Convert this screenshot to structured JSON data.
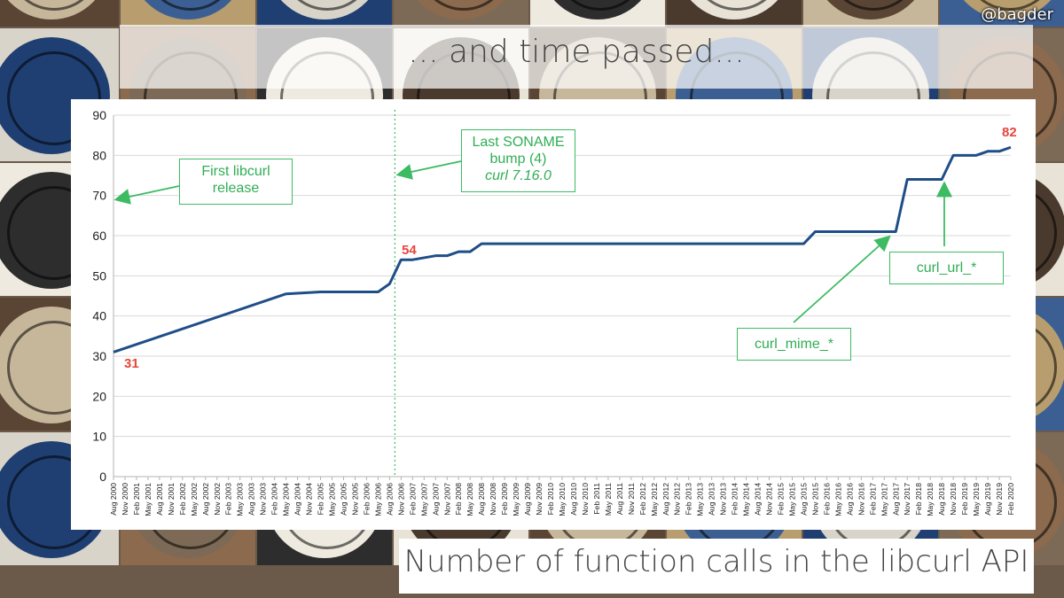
{
  "slide": {
    "handle": "@bagder",
    "title": "... and time passed...",
    "caption": "Number of function calls in the libcurl API"
  },
  "background": {
    "description_icon": "clock-faces-collage",
    "tile_colors": [
      "#c7b79a",
      "#3c5f93",
      "#d9d4c9",
      "#8b6a4e",
      "#2d2d2d",
      "#e8e3d6",
      "#5a4535",
      "#b89e6f",
      "#1f3f73",
      "#7d6a56",
      "#efeadf",
      "#4a3a2e"
    ]
  },
  "chart_data": {
    "type": "line",
    "title": "",
    "xlabel": "",
    "ylabel": "",
    "ylim": [
      0,
      90
    ],
    "yticks": [
      0,
      10,
      20,
      30,
      40,
      50,
      60,
      70,
      80,
      90
    ],
    "grid": true,
    "line_color": "#1f4e87",
    "x_tick_labels": [
      "Aug 2000",
      "Nov 2000",
      "Feb 2001",
      "May 2001",
      "Aug 2001",
      "Nov 2001",
      "Feb 2002",
      "May 2002",
      "Aug 2002",
      "Nov 2002",
      "Feb 2003",
      "May 2003",
      "Aug 2003",
      "Nov 2003",
      "Feb 2004",
      "May 2004",
      "Aug 2004",
      "Nov 2004",
      "Feb 2005",
      "May 2005",
      "Aug 2005",
      "Nov 2005",
      "Feb 2006",
      "May 2006",
      "Aug 2006",
      "Nov 2006",
      "Feb 2007",
      "May 2007",
      "Aug 2007",
      "Nov 2007",
      "Feb 2008",
      "May 2008",
      "Aug 2008",
      "Nov 2008",
      "Feb 2009",
      "May 2009",
      "Aug 2009",
      "Nov 2009",
      "Feb 2010",
      "May 2010",
      "Aug 2010",
      "Nov 2010",
      "Feb 2011",
      "May 2011",
      "Aug 2011",
      "Nov 2011",
      "Feb 2012",
      "May 2012",
      "Aug 2012",
      "Nov 2012",
      "Feb 2013",
      "May 2013",
      "Aug 2013",
      "Nov 2013",
      "Feb 2014",
      "May 2014",
      "Aug 2014",
      "Nov 2014",
      "Feb 2015",
      "May 2015",
      "Aug 2015",
      "Nov 2015",
      "Feb 2016",
      "May 2016",
      "Aug 2016",
      "Nov 2016",
      "Feb 2017",
      "May 2017",
      "Aug 2017",
      "Nov 2017",
      "Feb 2018",
      "May 2018",
      "Aug 2018",
      "Nov 2018",
      "Feb 2019",
      "May 2019",
      "Aug 2019",
      "Nov 2019",
      "Feb 2020"
    ],
    "series": [
      {
        "points": [
          [
            "Aug 2000",
            31
          ],
          [
            "May 2004",
            45.5
          ],
          [
            "Feb 2005",
            46
          ],
          [
            "Nov 2005",
            46
          ],
          [
            "May 2006",
            46
          ],
          [
            "Aug 2006",
            48
          ],
          [
            "Nov 2006",
            54
          ],
          [
            "Feb 2007",
            54
          ],
          [
            "May 2007",
            54.5
          ],
          [
            "Aug 2007",
            55
          ],
          [
            "Nov 2007",
            55
          ],
          [
            "Feb 2008",
            56
          ],
          [
            "May 2008",
            56
          ],
          [
            "Aug 2008",
            58
          ],
          [
            "Feb 2009",
            58
          ],
          [
            "Aug 2015",
            58
          ],
          [
            "Nov 2015",
            61
          ],
          [
            "Aug 2017",
            61
          ],
          [
            "Nov 2017",
            74
          ],
          [
            "Aug 2018",
            74
          ],
          [
            "Nov 2018",
            80
          ],
          [
            "May 2019",
            80
          ],
          [
            "Aug 2019",
            81
          ],
          [
            "Nov 2019",
            81
          ],
          [
            "Feb 2020",
            82
          ]
        ]
      }
    ],
    "value_labels": [
      {
        "text": "31",
        "x": "Aug 2000",
        "y": 31
      },
      {
        "text": "54",
        "x": "Nov 2006",
        "y": 54
      },
      {
        "text": "82",
        "x": "Feb 2020",
        "y": 82
      }
    ],
    "vertical_marker": {
      "x": "Nov 2006",
      "color": "#3dbb63",
      "style": "dotted"
    },
    "annotations": [
      {
        "id": "first-release",
        "lines": [
          "First libcurl",
          "release"
        ],
        "italic_line": ""
      },
      {
        "id": "soname-bump",
        "lines": [
          "Last SONAME",
          "bump (4)"
        ],
        "italic_line": "curl 7.16.0"
      },
      {
        "id": "curl-mime",
        "lines": [
          "curl_mime_*"
        ],
        "italic_line": ""
      },
      {
        "id": "curl-url",
        "lines": [
          "curl_url_*"
        ],
        "italic_line": ""
      }
    ],
    "annotation_color": "#3dbb63"
  }
}
